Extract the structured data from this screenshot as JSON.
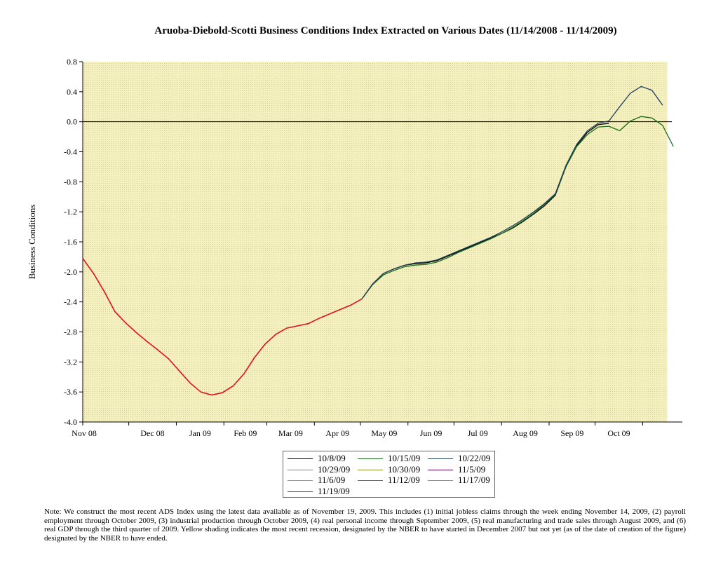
{
  "chart_data": {
    "type": "line",
    "title": "Aruoba-Diebold-Scotti Business Conditions Index Extracted on Various Dates (11/14/2008 - 11/14/2009)",
    "ylabel": "Business Conditions",
    "xlabel": "",
    "ylim": [
      -4.0,
      0.8
    ],
    "yticks": [
      "0.8",
      "0.4",
      "0.0",
      "-0.4",
      "-0.8",
      "-1.2",
      "-1.6",
      "-2.0",
      "-2.4",
      "-2.8",
      "-3.2",
      "-3.6",
      "-4.0"
    ],
    "xlim": [
      "2008-11-01",
      "2009-11-20"
    ],
    "month_labels": [
      "Nov 08",
      "Dec 08",
      "Jan 09",
      "Feb 09",
      "Mar 09",
      "Apr 09",
      "May 09",
      "Jun 09",
      "Jul 09",
      "Aug 09",
      "Sep 09",
      "Oct 09"
    ],
    "grid": false,
    "legend_position": "bottom",
    "recession_shading": {
      "start": "2008-11-01",
      "end": "2009-11-17",
      "color": "#f4f0c0"
    },
    "common_history": [
      [
        "2008-11-01",
        -1.82
      ],
      [
        "2008-11-08",
        -2.02
      ],
      [
        "2008-11-15",
        -2.26
      ],
      [
        "2008-11-22",
        -2.53
      ],
      [
        "2008-11-29",
        -2.68
      ],
      [
        "2008-12-06",
        -2.81
      ],
      [
        "2008-12-13",
        -2.93
      ],
      [
        "2008-12-20",
        -3.04
      ],
      [
        "2008-12-27",
        -3.16
      ],
      [
        "2009-01-03",
        -3.32
      ],
      [
        "2009-01-10",
        -3.48
      ],
      [
        "2009-01-17",
        -3.6
      ],
      [
        "2009-01-24",
        -3.64
      ],
      [
        "2009-01-31",
        -3.61
      ],
      [
        "2009-02-07",
        -3.52
      ],
      [
        "2009-02-14",
        -3.36
      ],
      [
        "2009-02-21",
        -3.14
      ],
      [
        "2009-02-28",
        -2.96
      ],
      [
        "2009-03-07",
        -2.83
      ],
      [
        "2009-03-14",
        -2.75
      ],
      [
        "2009-03-21",
        -2.72
      ],
      [
        "2009-03-28",
        -2.69
      ],
      [
        "2009-04-04",
        -2.62
      ],
      [
        "2009-04-11",
        -2.56
      ],
      [
        "2009-04-18",
        -2.5
      ],
      [
        "2009-04-25",
        -2.44
      ],
      [
        "2009-05-02",
        -2.36
      ]
    ],
    "series": [
      {
        "name": "10/8/09",
        "color": "#000000",
        "points": [
          [
            "2009-05-02",
            -2.36
          ],
          [
            "2009-05-09",
            -2.16
          ],
          [
            "2009-05-16",
            -2.02
          ],
          [
            "2009-05-23",
            -1.96
          ],
          [
            "2009-05-30",
            -1.91
          ],
          [
            "2009-06-06",
            -1.89
          ],
          [
            "2009-06-13",
            -1.88
          ],
          [
            "2009-06-20",
            -1.85
          ],
          [
            "2009-06-27",
            -1.79
          ],
          [
            "2009-07-04",
            -1.73
          ],
          [
            "2009-07-11",
            -1.67
          ],
          [
            "2009-07-18",
            -1.61
          ],
          [
            "2009-07-25",
            -1.55
          ],
          [
            "2009-08-01",
            -1.49
          ],
          [
            "2009-08-08",
            -1.42
          ],
          [
            "2009-08-15",
            -1.33
          ],
          [
            "2009-08-22",
            -1.23
          ],
          [
            "2009-08-29",
            -1.12
          ],
          [
            "2009-09-05",
            -0.98
          ],
          [
            "2009-09-12",
            -0.6
          ],
          [
            "2009-09-19",
            -0.32
          ],
          [
            "2009-09-26",
            -0.14
          ],
          [
            "2009-10-03",
            -0.04
          ],
          [
            "2009-10-10",
            -0.02
          ]
        ]
      },
      {
        "name": "10/15/09",
        "color": "#1a6b1a",
        "points": [
          [
            "2009-05-02",
            -2.36
          ],
          [
            "2009-05-09",
            -2.17
          ],
          [
            "2009-05-16",
            -2.04
          ],
          [
            "2009-05-23",
            -1.98
          ],
          [
            "2009-05-30",
            -1.93
          ],
          [
            "2009-06-06",
            -1.91
          ],
          [
            "2009-06-13",
            -1.9
          ],
          [
            "2009-06-20",
            -1.87
          ],
          [
            "2009-06-27",
            -1.81
          ],
          [
            "2009-07-04",
            -1.74
          ],
          [
            "2009-07-11",
            -1.68
          ],
          [
            "2009-07-18",
            -1.62
          ],
          [
            "2009-07-25",
            -1.56
          ],
          [
            "2009-08-01",
            -1.49
          ],
          [
            "2009-08-08",
            -1.41
          ],
          [
            "2009-08-15",
            -1.32
          ],
          [
            "2009-08-22",
            -1.22
          ],
          [
            "2009-08-29",
            -1.1
          ],
          [
            "2009-09-05",
            -0.97
          ],
          [
            "2009-09-12",
            -0.6
          ],
          [
            "2009-09-19",
            -0.33
          ],
          [
            "2009-09-26",
            -0.17
          ],
          [
            "2009-10-03",
            -0.07
          ],
          [
            "2009-10-10",
            -0.06
          ],
          [
            "2009-10-17",
            -0.12
          ],
          [
            "2009-10-24",
            0.01
          ],
          [
            "2009-10-31",
            0.07
          ],
          [
            "2009-11-07",
            0.05
          ],
          [
            "2009-11-14",
            -0.05
          ],
          [
            "2009-11-21",
            -0.33
          ]
        ]
      },
      {
        "name": "10/22/09",
        "color": "#1f3f5f",
        "points": [
          [
            "2009-05-02",
            -2.36
          ],
          [
            "2009-05-09",
            -2.16
          ],
          [
            "2009-05-16",
            -2.02
          ],
          [
            "2009-05-23",
            -1.96
          ],
          [
            "2009-05-30",
            -1.91
          ],
          [
            "2009-06-06",
            -1.88
          ],
          [
            "2009-06-13",
            -1.87
          ],
          [
            "2009-06-20",
            -1.84
          ],
          [
            "2009-06-27",
            -1.78
          ],
          [
            "2009-07-04",
            -1.72
          ],
          [
            "2009-07-11",
            -1.66
          ],
          [
            "2009-07-18",
            -1.6
          ],
          [
            "2009-07-25",
            -1.54
          ],
          [
            "2009-08-01",
            -1.47
          ],
          [
            "2009-08-08",
            -1.39
          ],
          [
            "2009-08-15",
            -1.3
          ],
          [
            "2009-08-22",
            -1.2
          ],
          [
            "2009-08-29",
            -1.09
          ],
          [
            "2009-09-05",
            -0.96
          ],
          [
            "2009-09-12",
            -0.58
          ],
          [
            "2009-09-19",
            -0.3
          ],
          [
            "2009-09-26",
            -0.12
          ],
          [
            "2009-10-03",
            -0.02
          ],
          [
            "2009-10-10",
            0.01
          ],
          [
            "2009-10-17",
            0.2
          ],
          [
            "2009-10-24",
            0.38
          ],
          [
            "2009-10-31",
            0.47
          ],
          [
            "2009-11-07",
            0.42
          ],
          [
            "2009-11-14",
            0.22
          ]
        ]
      }
    ]
  },
  "legend": {
    "items": [
      {
        "label": "10/8/09",
        "color": "#000000"
      },
      {
        "label": "10/15/09",
        "color": "#1a6b1a"
      },
      {
        "label": "10/22/09",
        "color": "#1f3f5f"
      },
      {
        "label": "10/29/09",
        "color": "#7f7f7f"
      },
      {
        "label": "10/30/09",
        "color": "#8f8a2a"
      },
      {
        "label": "11/5/09",
        "color": "#600060"
      },
      {
        "label": "11/6/09",
        "color": "#e08a20"
      },
      {
        "label": "11/12/09",
        "color": "#6a4cff"
      },
      {
        "label": "11/17/09",
        "color": "#ff40ff"
      },
      {
        "label": "11/19/09",
        "color": "#e01020"
      }
    ]
  },
  "note": "Note: We construct the most recent ADS Index using the latest data available as of November 19, 2009. This includes (1) initial jobless claims through the week ending November 14, 2009, (2) payroll employment through October 2009, (3) industrial production through October 2009, (4) real personal income through September 2009, (5) real manufacturing and trade sales through August 2009, and (6) real GDP through the third quarter of 2009. Yellow shading indicates the most recent recession, designated by the NBER to have started in December 2007 but not yet (as of the date of creation of the figure) designated by the NBER to have ended."
}
